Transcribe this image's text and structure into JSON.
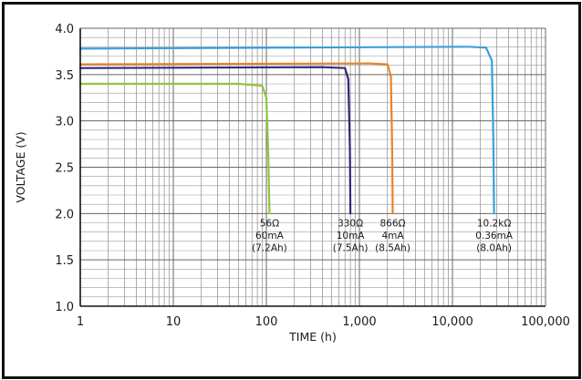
{
  "chart_data": {
    "type": "line",
    "title": "",
    "xlabel": "TIME (h)",
    "ylabel": "VOLTAGE (V)",
    "xscale": "log",
    "xlim": [
      1,
      100000
    ],
    "ylim": [
      1.0,
      4.0
    ],
    "x_tick_labels": [
      "1",
      "10",
      "100",
      "1,000",
      "10,000",
      "100,000"
    ],
    "x_tick_values": [
      1,
      10,
      100,
      1000,
      10000,
      100000
    ],
    "y_tick_labels": [
      "1.0",
      "1.5",
      "2.0",
      "2.5",
      "3.0",
      "3.5",
      "4.0"
    ],
    "y_tick_values": [
      1.0,
      1.5,
      2.0,
      2.5,
      3.0,
      3.5,
      4.0
    ],
    "grid": true,
    "series": [
      {
        "color": "#8dc63f",
        "x": [
          1,
          50,
          90,
          100,
          105,
          108
        ],
        "y": [
          3.4,
          3.4,
          3.38,
          3.25,
          2.6,
          2.0
        ],
        "annotation": [
          "56Ω",
          "60mA",
          "(7.2Ah)"
        ]
      },
      {
        "color": "#2e2a7a",
        "x": [
          1,
          400,
          700,
          760,
          790,
          800
        ],
        "y": [
          3.57,
          3.58,
          3.57,
          3.45,
          2.7,
          2.0
        ],
        "annotation": [
          "330Ω",
          "10mA",
          "(7.5Ah)"
        ]
      },
      {
        "color": "#e8832a",
        "x": [
          1,
          1300,
          2000,
          2180,
          2250,
          2280
        ],
        "y": [
          3.61,
          3.62,
          3.61,
          3.48,
          2.7,
          2.0
        ],
        "annotation": [
          "866Ω",
          "4mA",
          "(8.5Ah)"
        ]
      },
      {
        "color": "#3aa0dc",
        "x": [
          1,
          15000,
          23000,
          26500,
          27500,
          28000
        ],
        "y": [
          3.78,
          3.8,
          3.79,
          3.65,
          2.8,
          2.0
        ],
        "annotation": [
          "10.2kΩ",
          "0.36mA",
          "(8.0Ah)"
        ]
      }
    ]
  }
}
